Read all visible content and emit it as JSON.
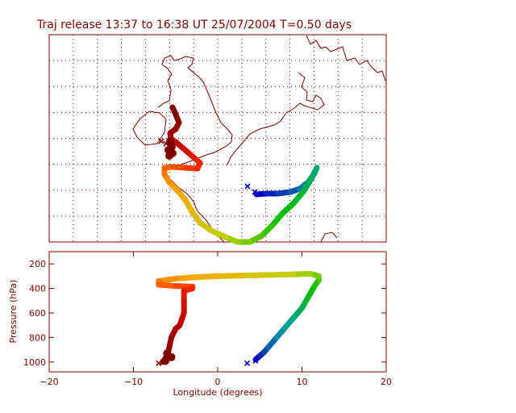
{
  "chart_data": [
    {
      "id": "map",
      "type": "map-trajectory",
      "title": "Traj release 13:37 to 16:38 UT 25/07/2004    T=0.50 days",
      "grid": true,
      "colors": {
        "frame": "#800000",
        "coast": "#800000",
        "grid": "#800000",
        "start_marker": "#0000c0",
        "end_marker": "#800000"
      },
      "traj_a": [
        [
          1,
          94
        ],
        [
          1,
          75
        ],
        [
          2,
          50
        ],
        [
          3,
          30
        ],
        [
          5,
          18
        ],
        [
          7.5,
          16
        ],
        [
          10,
          12
        ],
        [
          12.5,
          5
        ],
        [
          15,
          -1
        ],
        [
          17,
          -9
        ],
        [
          19,
          -18
        ],
        [
          20.5,
          -27
        ],
        [
          22,
          -36
        ],
        [
          24,
          -48
        ],
        [
          26,
          -60
        ],
        [
          28,
          -70
        ],
        [
          30,
          -78
        ],
        [
          31,
          -82
        ],
        [
          31.5,
          -84
        ]
      ],
      "traj_b": [
        [
          -10,
          75
        ],
        [
          -10.5,
          78
        ],
        [
          -11,
          80
        ],
        [
          -11.5,
          85
        ],
        [
          -12,
          90
        ],
        [
          -12,
          100
        ],
        [
          -14,
          105
        ],
        [
          -16,
          110
        ],
        [
          -18,
          115
        ],
        [
          -20,
          118
        ],
        [
          -24,
          130
        ],
        [
          -24,
          150
        ],
        [
          -25,
          170
        ]
      ],
      "start_points": [
        [
          -20,
          68
        ],
        [
          -18,
          70
        ]
      ],
      "end_points": [
        [
          -24,
          156
        ],
        [
          -25,
          152
        ]
      ],
      "gradient": [
        "#0000c0",
        "#00a0a0",
        "#00c000",
        "#c0d000",
        "#ffa000",
        "#ff3000",
        "#c00000",
        "#800000"
      ]
    },
    {
      "id": "pressure",
      "type": "line",
      "xlabel": "Longitude  (degrees)",
      "ylabel": "Pressure  (hPa)",
      "xlim": [
        -20,
        20
      ],
      "ylim": [
        1100,
        100
      ],
      "x_ticks": [
        -20,
        -10,
        0,
        10,
        20
      ],
      "y_ticks": [
        200,
        400,
        600,
        800,
        1000
      ],
      "series": [
        {
          "values": [
            [
              4.5,
              980
            ],
            [
              5,
              950
            ],
            [
              5.5,
              920
            ],
            [
              6,
              880
            ],
            [
              7,
              800
            ],
            [
              8,
              720
            ],
            [
              9,
              640
            ],
            [
              10,
              560
            ],
            [
              10.5,
              500
            ],
            [
              11,
              440
            ],
            [
              11.5,
              380
            ],
            [
              12,
              330
            ],
            [
              12,
              300
            ],
            [
              11,
              280
            ],
            [
              9,
              285
            ],
            [
              6,
              290
            ],
            [
              3,
              295
            ],
            [
              0,
              300
            ],
            [
              -3,
              310
            ],
            [
              -5,
              320
            ],
            [
              -7,
              340
            ],
            [
              -7,
              370
            ],
            [
              -5,
              380
            ],
            [
              -3,
              385
            ],
            [
              -3,
              400
            ],
            [
              -4,
              420
            ],
            [
              -4,
              500
            ],
            [
              -4,
              600
            ],
            [
              -4.5,
              700
            ],
            [
              -5,
              730
            ],
            [
              -5.5,
              800
            ],
            [
              -5.8,
              900
            ],
            [
              -6,
              950
            ],
            [
              -6.5,
              1000
            ]
          ]
        }
      ],
      "start_points": [
        [
          3.5,
          1010
        ],
        [
          4.5,
          990
        ]
      ],
      "end_points": [
        [
          -7,
          1010
        ],
        [
          -6.5,
          1000
        ]
      ]
    }
  ]
}
